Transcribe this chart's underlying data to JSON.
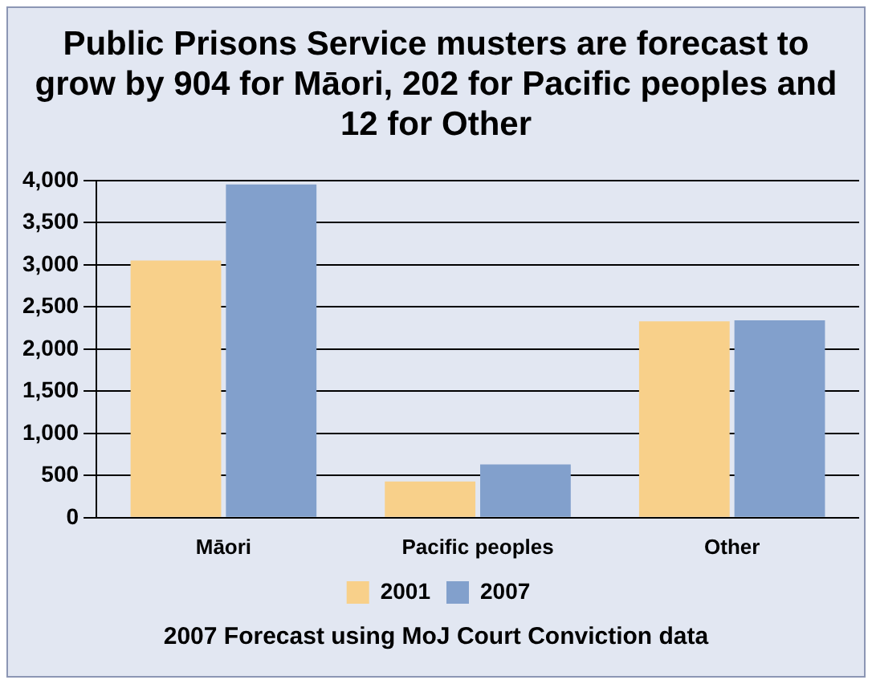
{
  "chart_data": {
    "type": "bar",
    "title": "Public Prisons Service musters are forecast to grow by 904 for Māori, 202 for Pacific peoples and 12 for Other",
    "categories": [
      "Māori",
      "Pacific peoples",
      "Other"
    ],
    "series": [
      {
        "name": "2001",
        "color": "#f8d08a",
        "values": [
          3050,
          430,
          2330
        ]
      },
      {
        "name": "2007",
        "color": "#82a0cc",
        "values": [
          3954,
          632,
          2342
        ]
      }
    ],
    "ylim": [
      0,
      4000
    ],
    "yticks": [
      {
        "value": 0,
        "label": "0"
      },
      {
        "value": 500,
        "label": "500"
      },
      {
        "value": 1000,
        "label": "1,000"
      },
      {
        "value": 1500,
        "label": "1,500"
      },
      {
        "value": 2000,
        "label": "2,000"
      },
      {
        "value": 2500,
        "label": "2,500"
      },
      {
        "value": 3000,
        "label": "3,000"
      },
      {
        "value": 3500,
        "label": "3,500"
      },
      {
        "value": 4000,
        "label": "4,000"
      }
    ],
    "grid": "y",
    "legend": "bottom",
    "annotations": [
      "2007 Forecast using MoJ Court Conviction data"
    ]
  }
}
